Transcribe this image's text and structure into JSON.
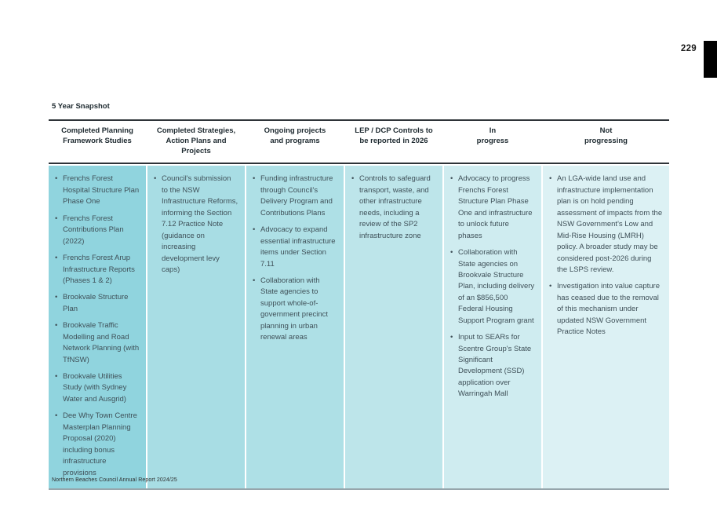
{
  "page": {
    "number": "229",
    "footer": "Northern Beaches Council Annual Report 2024/25"
  },
  "snapshot": {
    "title": "5 Year Snapshot",
    "colors": {
      "rule_dark": "#2e3338",
      "rule_bottom": "#96a5ab",
      "body_text": "#3f5058",
      "header_text": "#1e2a30"
    },
    "columns": [
      {
        "header": "Completed Planning\nFramework Studies",
        "bg": "#90d4de",
        "items": [
          "Frenchs Forest Hospital Structure Plan Phase One",
          "Frenchs Forest Contributions Plan (2022)",
          "Frenchs Forest Arup Infrastructure Reports (Phases 1 & 2)",
          "Brookvale Structure Plan",
          "Brookvale Traffic Modelling and Road Network Planning (with TfNSW)",
          "Brookvale Utilities Study (with Sydney Water and Ausgrid)",
          "Dee Why Town Centre Masterplan Planning Proposal (2020) including bonus infrastructure provisions"
        ]
      },
      {
        "header": "Completed Strategies,\nAction Plans and Projects",
        "bg": "#a8dde4",
        "items": [
          "Council's submission to the NSW Infrastructure Reforms, informing the Section 7.12 Practice Note (guidance on increasing development levy caps)"
        ]
      },
      {
        "header": "Ongoing projects\nand programs",
        "bg": "#aee0e6",
        "items": [
          "Funding infrastructure through Council's Delivery Program and Contributions Plans",
          "Advocacy to expand essential infrastructure items under Section 7.11",
          "Collaboration with State agencies to support whole-of-government precinct planning in urban renewal areas"
        ]
      },
      {
        "header": "LEP / DCP Controls to\nbe reported in 2026",
        "bg": "#bde5ea",
        "items": [
          "Controls to safeguard transport, waste, and other infrastructure needs, including a review of the SP2 infrastructure zone"
        ]
      },
      {
        "header": "In\nprogress",
        "bg": "#cfecf0",
        "items": [
          "Advocacy to progress Frenchs Forest Structure Plan Phase One and infrastructure to unlock future phases",
          "Collaboration with State agencies on Brookvale Structure Plan, including delivery of an $856,500 Federal Housing Support Program grant",
          "Input to SEARs for Scentre Group's State Significant Development (SSD) application over Warringah Mall"
        ]
      },
      {
        "header": "Not\nprogressing",
        "bg": "#dcf1f4",
        "items": [
          "An LGA-wide land use and infrastructure implementation plan is on hold pending assessment of impacts from the NSW Government's Low and Mid-Rise Housing (LMRH) policy. A broader study may be considered post-2026 during the LSPS review.",
          "Investigation into value capture has ceased due to the removal of this mechanism under updated NSW Government Practice Notes"
        ]
      }
    ]
  }
}
